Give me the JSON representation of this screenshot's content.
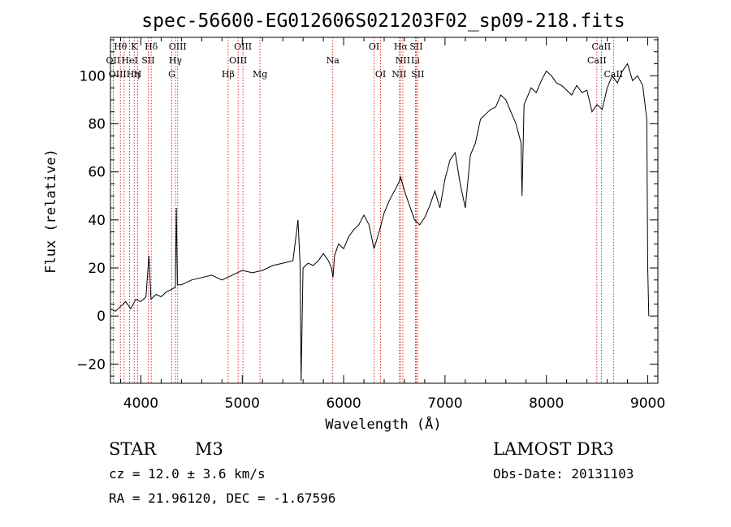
{
  "chart_data": {
    "type": "line",
    "title": "spec-56600-EG012606S021203F02_sp09-218.fits",
    "xlabel": "Wavelength (Å)",
    "ylabel": "Flux (relative)",
    "xlim": [
      3700,
      9100
    ],
    "ylim": [
      -28,
      116
    ],
    "xticks": [
      4000,
      5000,
      6000,
      7000,
      8000,
      9000
    ],
    "xtick_labels": [
      "4000",
      "5000",
      "6000",
      "7000",
      "8000",
      "9000"
    ],
    "yticks": [
      -20,
      0,
      20,
      40,
      60,
      80,
      100
    ],
    "ytick_labels": [
      "−20",
      "0",
      "20",
      "40",
      "60",
      "80",
      "100"
    ],
    "series": [
      {
        "name": "flux",
        "x": [
          3700,
          3750,
          3800,
          3850,
          3900,
          3950,
          4000,
          4050,
          4080,
          4100,
          4150,
          4200,
          4250,
          4300,
          4340,
          4350,
          4360,
          4400,
          4500,
          4600,
          4700,
          4800,
          4900,
          5000,
          5100,
          5200,
          5300,
          5400,
          5500,
          5550,
          5570,
          5580,
          5600,
          5650,
          5700,
          5750,
          5800,
          5850,
          5880,
          5895,
          5910,
          5950,
          6000,
          6050,
          6100,
          6150,
          6200,
          6250,
          6300,
          6350,
          6400,
          6450,
          6500,
          6550,
          6562,
          6600,
          6650,
          6700,
          6750,
          6800,
          6850,
          6900,
          6950,
          7000,
          7050,
          7100,
          7150,
          7200,
          7250,
          7300,
          7350,
          7400,
          7450,
          7500,
          7550,
          7600,
          7650,
          7700,
          7750,
          7760,
          7780,
          7800,
          7850,
          7900,
          7950,
          8000,
          8050,
          8100,
          8150,
          8200,
          8250,
          8300,
          8350,
          8400,
          8450,
          8500,
          8550,
          8600,
          8650,
          8700,
          8750,
          8800,
          8850,
          8900,
          8950,
          8990,
          9000,
          9010
        ],
        "y": [
          3,
          2,
          4,
          6,
          3,
          7,
          6,
          8,
          25,
          7,
          9,
          8,
          10,
          11,
          12,
          45,
          13,
          13,
          15,
          16,
          17,
          15,
          17,
          19,
          18,
          19,
          21,
          22,
          23,
          40,
          22,
          -27,
          20,
          22,
          21,
          23,
          26,
          23,
          20,
          16,
          25,
          30,
          28,
          33,
          36,
          38,
          42,
          38,
          28,
          35,
          43,
          48,
          52,
          56,
          58,
          52,
          46,
          40,
          38,
          41,
          46,
          52,
          45,
          57,
          65,
          68,
          55,
          45,
          67,
          72,
          82,
          84,
          86,
          87,
          92,
          90,
          85,
          80,
          72,
          50,
          88,
          90,
          95,
          93,
          98,
          102,
          100,
          97,
          96,
          94,
          92,
          96,
          93,
          94,
          85,
          88,
          86,
          95,
          100,
          97,
          102,
          105,
          98,
          100,
          96,
          82,
          20,
          0
        ]
      }
    ],
    "spectral_lines": [
      {
        "label": "Hθ",
        "wave": 3798,
        "row": 0
      },
      {
        "label": "OII",
        "wave": 3727,
        "row": 1
      },
      {
        "label": "OIIIHη",
        "wave": 3835,
        "row": 2
      },
      {
        "label": "K",
        "wave": 3934,
        "row": 0
      },
      {
        "label": "HeI",
        "wave": 3889,
        "row": 1
      },
      {
        "label": "H",
        "wave": 3969,
        "row": 2
      },
      {
        "label": "Hδ",
        "wave": 4102,
        "row": 0
      },
      {
        "label": "SII",
        "wave": 4072,
        "row": 1
      },
      {
        "label": "OIII",
        "wave": 4363,
        "row": 0
      },
      {
        "label": "Hγ",
        "wave": 4340,
        "row": 1
      },
      {
        "label": "G",
        "wave": 4305,
        "row": 2
      },
      {
        "label": "Hβ",
        "wave": 4861,
        "row": 2
      },
      {
        "label": "OIII",
        "wave": 5007,
        "row": 0
      },
      {
        "label": "OIII",
        "wave": 4959,
        "row": 1
      },
      {
        "label": "Mg",
        "wave": 5175,
        "row": 2
      },
      {
        "label": "Na",
        "wave": 5893,
        "row": 1
      },
      {
        "label": "OI",
        "wave": 6300,
        "row": 0
      },
      {
        "label": "OI",
        "wave": 6364,
        "row": 2
      },
      {
        "label": "Hα",
        "wave": 6563,
        "row": 0
      },
      {
        "label": "SII",
        "wave": 6716,
        "row": 0
      },
      {
        "label": "NII",
        "wave": 6584,
        "row": 1
      },
      {
        "label": "Li",
        "wave": 6708,
        "row": 1
      },
      {
        "label": "NII",
        "wave": 6548,
        "row": 2
      },
      {
        "label": "SII",
        "wave": 6731,
        "row": 2
      },
      {
        "label": "CaII",
        "wave": 8542,
        "row": 0
      },
      {
        "label": "CaII",
        "wave": 8498,
        "row": 1
      },
      {
        "label": "CaII",
        "wave": 8662,
        "row": 2
      }
    ]
  },
  "info": {
    "class": "STAR",
    "subclass": "M3",
    "survey": "LAMOST DR3",
    "cz": "cz = 12.0 ± 3.6 km/s",
    "obs_date": "Obs-Date: 20131103",
    "coords": "RA =  21.96120, DEC =  -1.67596"
  },
  "colors": {
    "axis": "#000000",
    "flux": "#000000",
    "line_marker": "#cc0000",
    "background": "#ffffff"
  }
}
